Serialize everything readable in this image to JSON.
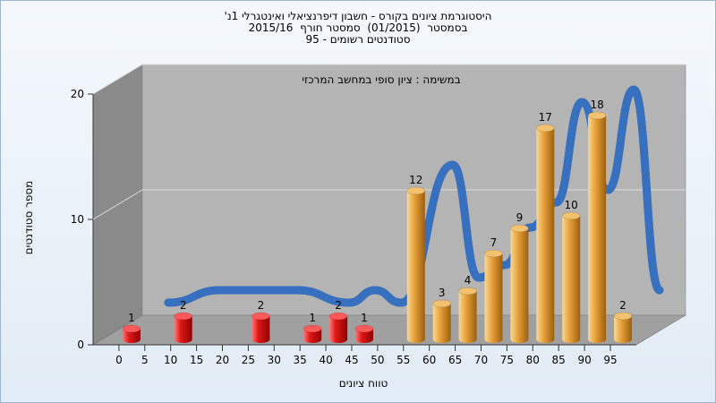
{
  "chart_data": {
    "type": "bar",
    "title_lines": [
      "היסטוגרמת ציונים בקורס - חשבון דיפרנציאלי ואינטגרלי 1נ'",
      "בסמסטר  (01/2015)  סמסטר חורף  2015/16",
      "סטודנטים רשומים - 95"
    ],
    "annotation": "במשימה : ציון סופי במחשב המרכזי",
    "xlabel": "טווח ציונים",
    "ylabel": "מספר סטודנטים",
    "ylim": [
      0,
      20
    ],
    "y_ticks": [
      0,
      10,
      20
    ],
    "grid": true,
    "x_ticks": [
      0,
      5,
      10,
      15,
      20,
      25,
      30,
      35,
      40,
      45,
      50,
      55,
      60,
      65,
      70,
      75,
      80,
      85,
      90,
      95
    ],
    "bars": [
      {
        "x": 0,
        "value": 1,
        "group": "fail"
      },
      {
        "x": 10,
        "value": 2,
        "group": "fail"
      },
      {
        "x": 25,
        "value": 2,
        "group": "fail"
      },
      {
        "x": 35,
        "value": 1,
        "group": "fail"
      },
      {
        "x": 40,
        "value": 2,
        "group": "fail"
      },
      {
        "x": 45,
        "value": 1,
        "group": "fail"
      },
      {
        "x": 55,
        "value": 12,
        "group": "pass"
      },
      {
        "x": 60,
        "value": 3,
        "group": "pass"
      },
      {
        "x": 65,
        "value": 4,
        "group": "pass"
      },
      {
        "x": 70,
        "value": 7,
        "group": "pass"
      },
      {
        "x": 75,
        "value": 9,
        "group": "pass"
      },
      {
        "x": 80,
        "value": 17,
        "group": "pass"
      },
      {
        "x": 85,
        "value": 10,
        "group": "pass"
      },
      {
        "x": 90,
        "value": 18,
        "group": "pass"
      },
      {
        "x": 95,
        "value": 2,
        "group": "pass"
      }
    ],
    "colors": {
      "fail": "#e01818",
      "pass": "#e8a23a",
      "ribbon_gray": "#6e6e6e",
      "ribbon_blue": "#2f6fc6",
      "back_wall": "#b4b4b4",
      "side_wall": "#8a8a8a",
      "floor": "#a0a0a0"
    }
  }
}
